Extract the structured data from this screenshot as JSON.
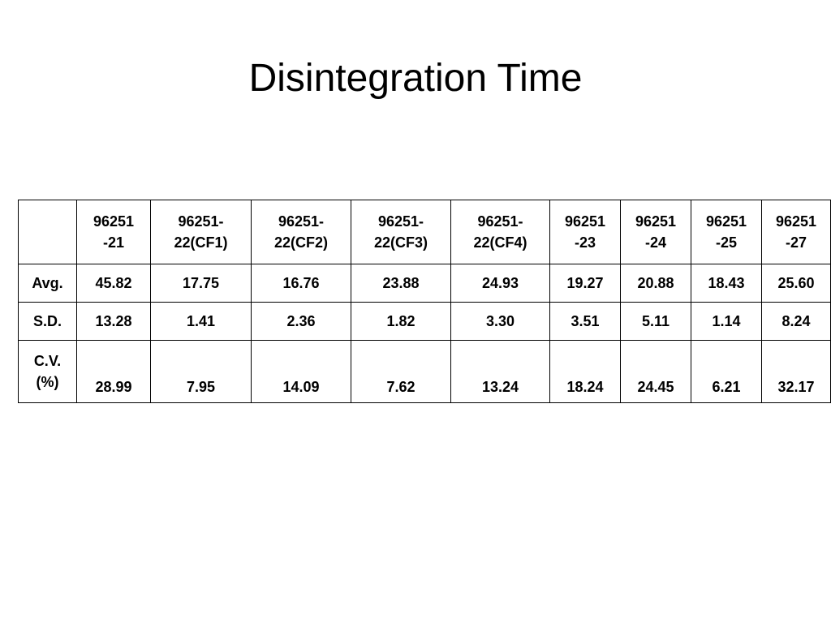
{
  "title": "Disintegration Time",
  "table": {
    "header": [
      [],
      [
        "96251",
        "-21"
      ],
      [
        "96251-",
        "22(CF1)"
      ],
      [
        "96251-",
        "22(CF2)"
      ],
      [
        "96251-",
        "22(CF3)"
      ],
      [
        "96251-",
        "22(CF4)"
      ],
      [
        "96251",
        "-23"
      ],
      [
        "96251",
        "-24"
      ],
      [
        "96251",
        "-25"
      ],
      [
        "96251",
        "-27"
      ]
    ],
    "rows": [
      [
        [
          "Avg."
        ],
        "45.82",
        "17.75",
        "16.76",
        "23.88",
        "24.93",
        "19.27",
        "20.88",
        "18.43",
        "25.60"
      ],
      [
        [
          "S.D."
        ],
        "13.28",
        "1.41",
        "2.36",
        "1.82",
        "3.30",
        "3.51",
        "5.11",
        "1.14",
        "8.24"
      ],
      [
        [
          "C.V.",
          "(%)"
        ],
        "28.99",
        "7.95",
        "14.09",
        "7.62",
        "13.24",
        "18.24",
        "24.45",
        "6.21",
        "32.17"
      ]
    ]
  }
}
